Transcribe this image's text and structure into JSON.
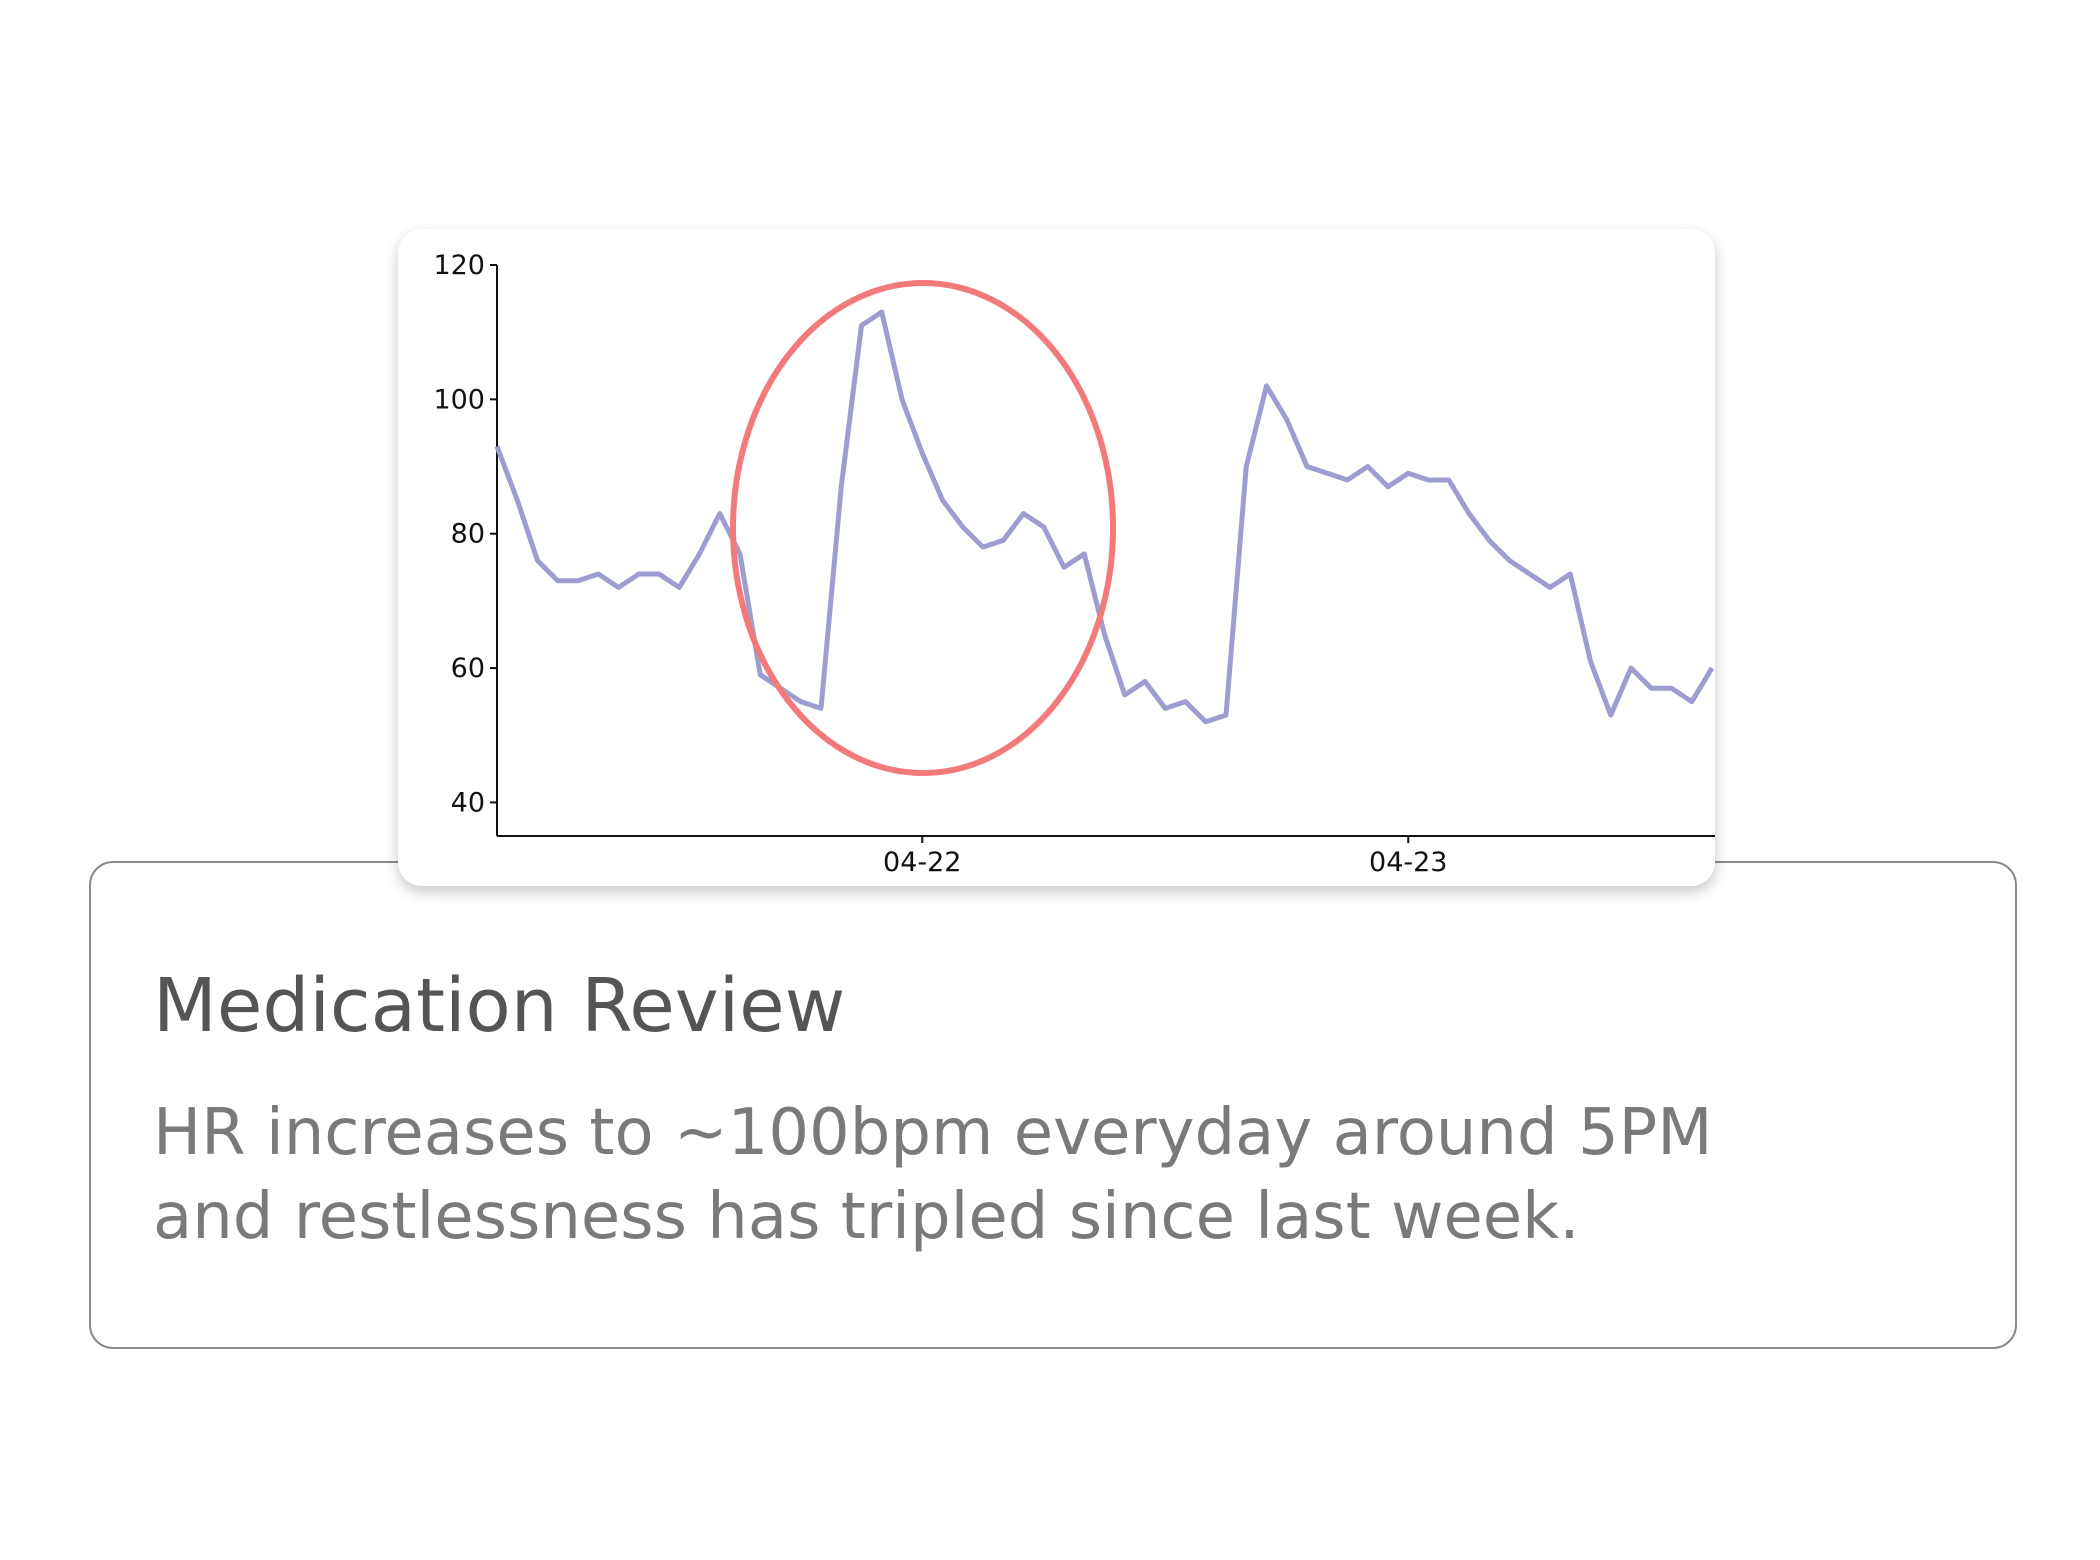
{
  "chart_data": {
    "type": "line",
    "categories": [
      null,
      null,
      null,
      null,
      null,
      null,
      null,
      null,
      null,
      null,
      null,
      null,
      null,
      null,
      null,
      null,
      null,
      null,
      null,
      null,
      null,
      "04-22",
      null,
      null,
      null,
      null,
      null,
      null,
      null,
      null,
      null,
      null,
      null,
      null,
      null,
      null,
      null,
      null,
      null,
      null,
      null,
      null,
      null,
      null,
      null,
      "04-23",
      null,
      null,
      null,
      null,
      null,
      null,
      null,
      null,
      null,
      null,
      null,
      null,
      null,
      null,
      null
    ],
    "values": [
      93,
      85,
      76,
      73,
      73,
      74,
      72,
      74,
      74,
      72,
      77,
      83,
      77,
      59,
      57,
      55,
      54,
      87,
      111,
      113,
      100,
      92,
      85,
      81,
      78,
      79,
      83,
      81,
      75,
      77,
      65,
      56,
      58,
      54,
      55,
      52,
      53,
      90,
      102,
      97,
      90,
      89,
      88,
      90,
      87,
      89,
      88,
      88,
      83,
      79,
      76,
      74,
      72,
      74,
      61,
      53,
      60,
      57,
      57,
      55,
      60
    ],
    "color": "#9d9dd1",
    "ylim": [
      35,
      120
    ],
    "yticks": [
      40,
      60,
      80,
      100,
      120
    ]
  },
  "card": {
    "title": "Medication Review",
    "body": "HR increases to ~100bpm everyday around 5PM and restlessness has tripled since last week."
  }
}
